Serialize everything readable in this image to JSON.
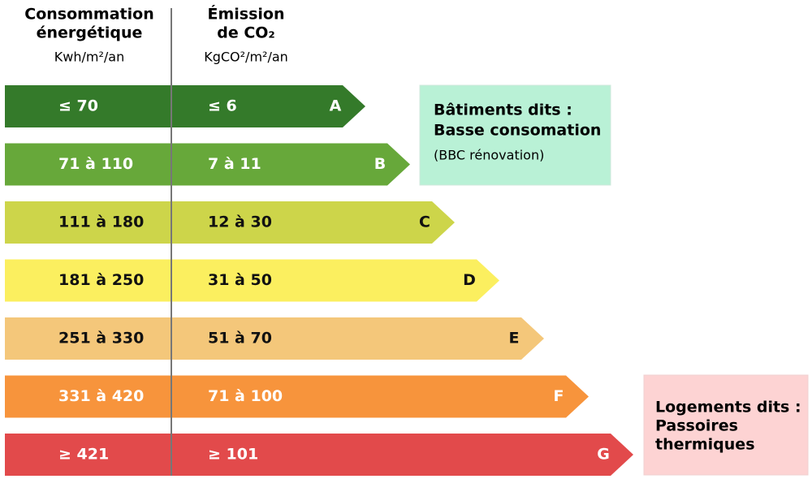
{
  "header": {
    "energy": {
      "title_lines": [
        "Consommation",
        "énergétique"
      ],
      "unit": "Kwh/m²/an"
    },
    "co2": {
      "title_lines": [
        "Émission",
        "de CO₂"
      ],
      "unit": "KgCO²/m²/an"
    }
  },
  "rows": [
    {
      "letter": "A",
      "energy": "≤ 70",
      "co2": "≤ 6",
      "color": "#347a2a",
      "text_color": "#ffffff"
    },
    {
      "letter": "B",
      "energy": "71 à 110",
      "co2": "7 à 11",
      "color": "#67a83a",
      "text_color": "#ffffff"
    },
    {
      "letter": "C",
      "energy": "111 à 180",
      "co2": "12 à 30",
      "color": "#cdd54a",
      "text_color": "#111111"
    },
    {
      "letter": "D",
      "energy": "181 à 250",
      "co2": "31 à 50",
      "color": "#fbef5f",
      "text_color": "#111111"
    },
    {
      "letter": "E",
      "energy": "251 à 330",
      "co2": "51 à 70",
      "color": "#f4c77a",
      "text_color": "#111111"
    },
    {
      "letter": "F",
      "energy": "331 à 420",
      "co2": "71 à 100",
      "color": "#f7943c",
      "text_color": "#ffffff"
    },
    {
      "letter": "G",
      "energy": "≥ 421",
      "co2": "≥ 101",
      "color": "#e24a4b",
      "text_color": "#ffffff"
    }
  ],
  "notes": {
    "low": {
      "title_lines": [
        "Bâtiments dits :",
        "Basse consomation"
      ],
      "subtitle": "(BBC rénovation)"
    },
    "high": {
      "title_lines": [
        "Logements dits :",
        "Passoires",
        "thermiques"
      ]
    }
  }
}
